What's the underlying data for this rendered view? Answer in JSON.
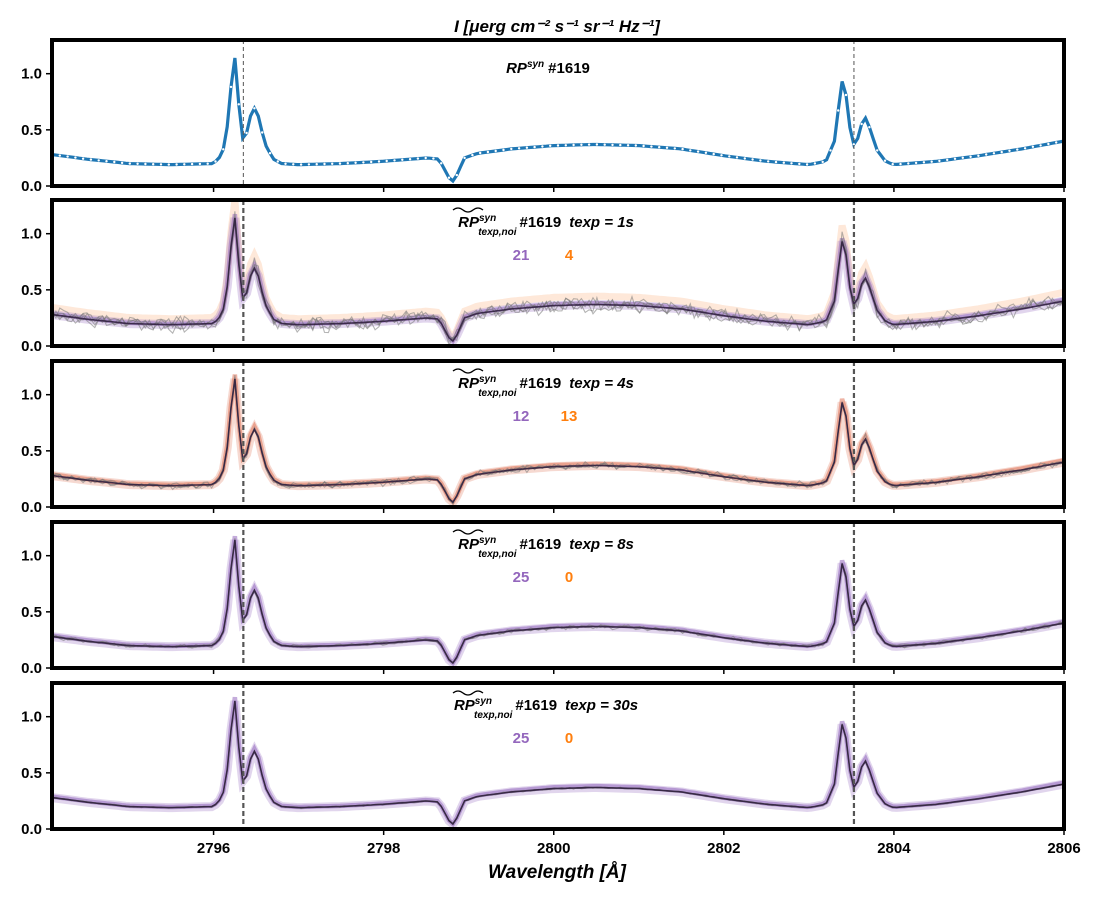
{
  "chart_data": {
    "type": "line",
    "title": "I [μerg cm⁻² s⁻¹ sr⁻¹ Hz⁻¹]",
    "xlabel": "Wavelength [Å]",
    "ylabel": "",
    "xlim": [
      2794.1,
      2806.0
    ],
    "ylim": [
      0.0,
      1.3
    ],
    "xticks": [
      "2796",
      "2798",
      "2800",
      "2802",
      "2804",
      "2806"
    ],
    "yticks": [
      "0.0",
      "0.5",
      "1.0"
    ],
    "reference_lines": [
      2796.35,
      2803.53
    ],
    "colors": {
      "blue": "#1f77b4",
      "purple": "#9467bd",
      "orange": "#ff7f0e",
      "dark": "#2b1b3b",
      "gray": "#777777",
      "salmon": "#e0755a"
    },
    "panels": [
      {
        "name": "RP_syn",
        "label_main": "RP",
        "label_sup": "syn",
        "label_rest": "#1619",
        "series": [
          {
            "name": "synthetic profile",
            "color": "#1f77b4",
            "style": "line-with-white-dots"
          }
        ]
      },
      {
        "name": "texp_1s",
        "label_main": "RP",
        "label_sup": "syn",
        "label_sub": "texp,noi",
        "label_rest": "#1619",
        "texp_label": "texp",
        "texp_value": "1s",
        "count_purple": "21",
        "count_orange": "4",
        "noise": 0.045,
        "dominant": "purple"
      },
      {
        "name": "texp_4s",
        "label_main": "RP",
        "label_sup": "syn",
        "label_sub": "texp,noi",
        "label_rest": "#1619",
        "texp_label": "texp",
        "texp_value": "4s",
        "count_purple": "12",
        "count_orange": "13",
        "noise": 0.02,
        "dominant": "orange"
      },
      {
        "name": "texp_8s",
        "label_main": "RP",
        "label_sup": "syn",
        "label_sub": "texp,noi",
        "label_rest": "#1619",
        "texp_label": "texp",
        "texp_value": "8s",
        "count_purple": "25",
        "count_orange": "0",
        "noise": 0.012,
        "dominant": "purple"
      },
      {
        "name": "texp_30s",
        "label_main": "RP",
        "label_sup": "syn",
        "label_sub": "texp,noi",
        "label_rest": "#1619",
        "texp_label": "texp",
        "texp_value": "30s",
        "count_purple": "25",
        "count_orange": "0",
        "noise": 0.005,
        "dominant": "purple"
      }
    ],
    "profile": {
      "x": [
        2794.1,
        2794.5,
        2795.0,
        2795.5,
        2796.0,
        2796.1,
        2796.15,
        2796.2,
        2796.25,
        2796.3,
        2796.35,
        2796.4,
        2796.45,
        2796.5,
        2796.55,
        2796.6,
        2796.7,
        2796.8,
        2797.0,
        2797.5,
        2798.0,
        2798.5,
        2798.65,
        2798.75,
        2798.8,
        2798.85,
        2798.95,
        2799.1,
        2799.5,
        2800.0,
        2800.5,
        2801.0,
        2801.5,
        2802.0,
        2802.5,
        2803.0,
        2803.2,
        2803.3,
        2803.35,
        2803.4,
        2803.45,
        2803.5,
        2803.55,
        2803.6,
        2803.65,
        2803.7,
        2803.8,
        2803.9,
        2804.0,
        2804.5,
        2805.0,
        2805.5,
        2806.0
      ],
      "y": [
        0.28,
        0.24,
        0.2,
        0.19,
        0.2,
        0.28,
        0.45,
        0.85,
        1.15,
        0.7,
        0.38,
        0.5,
        0.68,
        0.7,
        0.55,
        0.38,
        0.24,
        0.2,
        0.19,
        0.2,
        0.22,
        0.25,
        0.24,
        0.1,
        0.03,
        0.08,
        0.25,
        0.29,
        0.33,
        0.36,
        0.37,
        0.36,
        0.33,
        0.27,
        0.22,
        0.19,
        0.22,
        0.4,
        0.7,
        0.98,
        0.75,
        0.4,
        0.35,
        0.5,
        0.63,
        0.55,
        0.32,
        0.22,
        0.19,
        0.22,
        0.27,
        0.33,
        0.4
      ]
    }
  }
}
